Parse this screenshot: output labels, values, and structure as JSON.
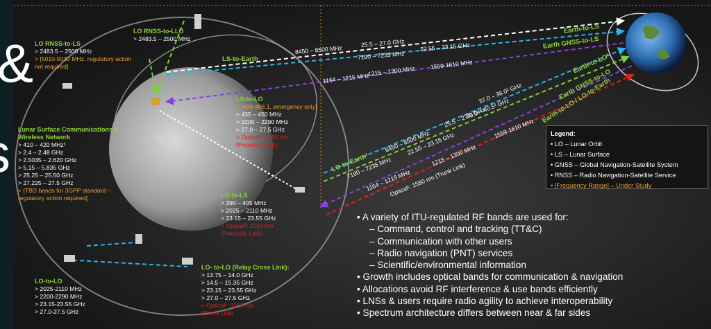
{
  "fragments": [
    "&",
    "s"
  ],
  "groups": [
    {
      "title": "LO RNSS-to-LS",
      "lines": [
        "> 2483.5 – 2500 MHz",
        "> [5010-5030 MHz, regulatory action not required]"
      ]
    },
    {
      "title": "LO RNSS-to-LLO",
      "lines": [
        "> 2483.5 – 2500 MHz"
      ]
    },
    {
      "title": "LS-to-LO",
      "lines": [
        "> [406-406.1, emergency only]",
        "> 435 – 450 MHz",
        "> 2200 – 2290 MHz",
        "> 27.0 – 27.5 GHz",
        "> Optical¹: 1550 nm",
        "(Proximity Link)"
      ]
    },
    {
      "title": "Lunar Surface Communications & Wireless Network",
      "lines": [
        "> 410 – 420 MHz¹",
        "> 2.4 – 2.48 GHz",
        "> 2.5035 – 2.620 GHz",
        "> 5.15 – 5.835 GHz",
        "> 25.25 – 25.50 GHz",
        "> 27.225 – 27.5 GHz",
        "> [TBD bands for 3GPP standard – regulatory action required]"
      ]
    },
    {
      "title": "LO-to-LS",
      "lines": [
        "> 390 – 405 MHz",
        "> 2025 – 2110 MHz",
        "> 23.15 – 23.55 GHz",
        "> Optical¹: 1550 nm",
        "(Proximity Link)"
      ]
    },
    {
      "title": "LO-to-LO",
      "lines": [
        "> 2025-2110 MHz",
        "> 2200-2290 MHz",
        "> 23.15-23.55 GHz",
        "> 27.0-27.5 GHz"
      ]
    },
    {
      "title": "LO- to-LO (Relay Cross Link):",
      "lines": [
        "> 13.75 – 14.0 GHz",
        "> 14.5 – 15.35 GHz",
        "> 23.15 – 23.55 GHz",
        "> 27.0 – 27.5 GHz",
        "> Optical¹: 1550 nm",
        "(Cross Link)"
      ]
    }
  ],
  "link_labels": [
    "LS-to-Earth",
    "LO-to-Earth³"
  ],
  "upper_freqs": [
    "8450 – 8500 MHz",
    "25.5 – 27.0 GHz",
    "7190 – 7235 MHz",
    "22.55 – 23.15 GHz",
    "1164 – 1215 MHz",
    "1215 – 1300 MHz",
    "1559-1610 MHz"
  ],
  "earth_labels": [
    "Earth-to-LS",
    "Earth GNSS-to-LS",
    "Earth-to-LO³",
    "Earth GNSS-to-LO",
    "Earth-to-LO / LO-to-Earth"
  ],
  "lower_freqs": [
    "8450 – 8500 MHz",
    "25.5 – 27.0 GHz",
    "7190 – 7235 MHz",
    "22.55 – 23.15 GHz",
    "37.0 – 38.0² GHz",
    "40.0 – 40.5² GHz",
    "1164 – 1215 MHz",
    "1215 – 1300 MHz",
    "1559-1610 MHz",
    "Optical¹: 1550 nm (Trunk Link)"
  ],
  "legend": {
    "title": "Legend:",
    "items": [
      "LO – Lunar Orbit",
      "LS – Lunar Surface",
      "GNSS – Global Navigation-Satellite System",
      "RNSS – Radio Navigation-Satellite Service",
      "[Frequency Range] – Under Study"
    ]
  },
  "bullets": [
    {
      "text": "A variety of ITU-regulated RF bands are used for:",
      "subs": [
        "Command, control and tracking (TT&C)",
        "Communication with other users",
        "Radio navigation (PNT) services",
        "Scientific/environmental information"
      ]
    },
    {
      "text": "Growth includes optical bands for communication & navigation"
    },
    {
      "text": "Allocations avoid RF interference & use bands efficiently"
    },
    {
      "text": "LNSs & users require radio agility to achieve interoperability"
    },
    {
      "text": "Spectrum architecture differs between near & far sides"
    }
  ]
}
